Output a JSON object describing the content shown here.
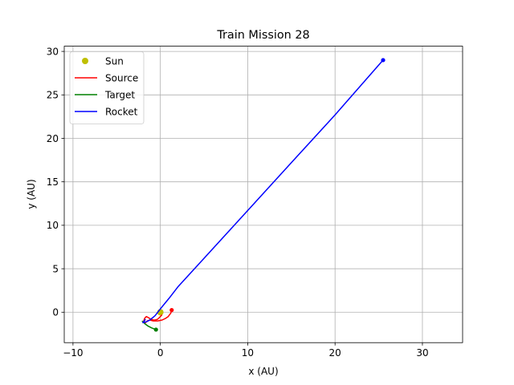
{
  "chart_data": {
    "type": "line",
    "title": "Train Mission 28",
    "xlabel": "x (AU)",
    "ylabel": "y (AU)",
    "xlim": [
      -11,
      34.6
    ],
    "ylim": [
      -3.5,
      30.6
    ],
    "xticks": [
      -10,
      0,
      10,
      20,
      30
    ],
    "yticks": [
      0,
      5,
      10,
      15,
      20,
      25,
      30
    ],
    "xtick_labels": [
      "−10",
      "0",
      "10",
      "20",
      "30"
    ],
    "ytick_labels": [
      "0",
      "5",
      "10",
      "15",
      "20",
      "25",
      "30"
    ],
    "grid": true,
    "legend_position": "top-left",
    "series": [
      {
        "name": "Sun",
        "kind": "marker",
        "color": "#bfbf00",
        "points": [
          [
            0,
            0
          ]
        ]
      },
      {
        "name": "Source",
        "kind": "line",
        "color": "#ff0000",
        "points": [
          [
            0.2,
            -0.3
          ],
          [
            -0.3,
            -0.8
          ],
          [
            -0.6,
            -0.9
          ],
          [
            -0.8,
            -0.9
          ],
          [
            -1.1,
            -0.8
          ],
          [
            -1.4,
            -0.6
          ],
          [
            -1.6,
            -0.5
          ],
          [
            -1.8,
            -0.7
          ],
          [
            -1.9,
            -1.0
          ],
          [
            -1.7,
            -1.2
          ],
          [
            -1.5,
            -1.0
          ],
          [
            -1.2,
            -0.9
          ],
          [
            -0.8,
            -1.0
          ],
          [
            -0.3,
            -1.0
          ],
          [
            0.2,
            -0.9
          ],
          [
            0.6,
            -0.7
          ],
          [
            0.9,
            -0.5
          ],
          [
            1.2,
            -0.1
          ],
          [
            1.3,
            0.25
          ]
        ],
        "end_marker": true
      },
      {
        "name": "Target",
        "kind": "line",
        "color": "#008000",
        "points": [
          [
            -2.1,
            -1.0
          ],
          [
            -1.8,
            -1.3
          ],
          [
            -1.4,
            -1.6
          ],
          [
            -1.0,
            -1.8
          ],
          [
            -0.5,
            -2.0
          ]
        ],
        "end_marker": true
      },
      {
        "name": "Rocket",
        "kind": "line",
        "color": "#0000ff",
        "points": [
          [
            -1.7,
            -0.8
          ],
          [
            -2.0,
            -1.2
          ],
          [
            -1.6,
            -1.1
          ],
          [
            -1.2,
            -0.9
          ],
          [
            -0.6,
            -0.4
          ],
          [
            0.1,
            0.5
          ],
          [
            1.0,
            1.6
          ],
          [
            2.0,
            2.9
          ],
          [
            5.0,
            6.2
          ],
          [
            10.0,
            11.7
          ],
          [
            15.0,
            17.2
          ],
          [
            20.0,
            22.7
          ],
          [
            25.5,
            29.0
          ]
        ],
        "end_marker": true
      }
    ]
  }
}
